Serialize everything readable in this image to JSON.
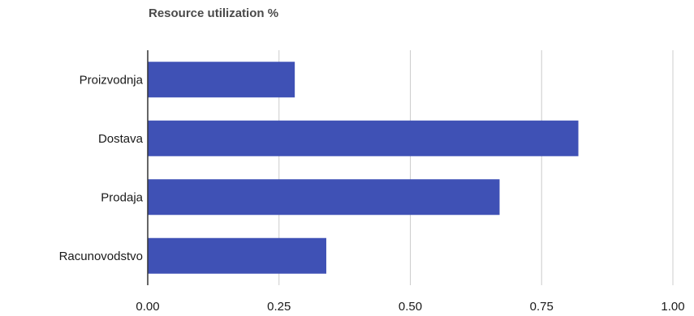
{
  "chart_data": {
    "type": "bar",
    "orientation": "horizontal",
    "title": "Resource utilization %",
    "categories": [
      "Proizvodnja",
      "Dostava",
      "Prodaja",
      "Racunovodstvo"
    ],
    "values": [
      0.28,
      0.82,
      0.67,
      0.34
    ],
    "xlim": [
      0,
      1
    ],
    "xticks": [
      "0.00",
      "0.25",
      "0.50",
      "0.75",
      "1.00"
    ],
    "grid": true,
    "bar_color": "#3f51b5",
    "grid_color": "#cccccc",
    "axis_color": "#333333"
  }
}
